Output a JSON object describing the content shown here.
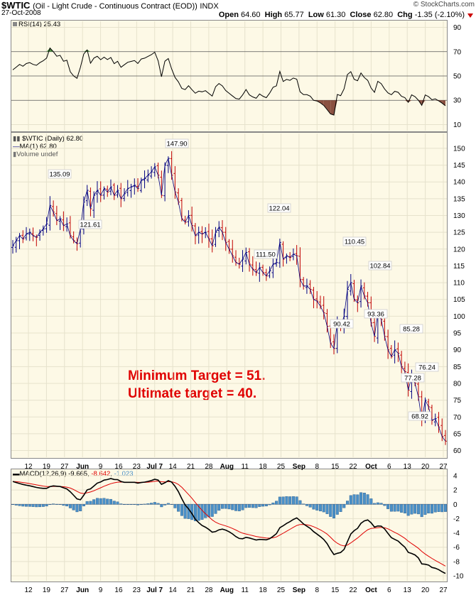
{
  "header": {
    "symbol": "$WTIC",
    "description": "(Oil - Light Crude - Continuous Contract (EOD))",
    "exchange": "INDX",
    "date": "27-Oct-2008",
    "quote": {
      "open_label": "Open",
      "open": "64.60",
      "high_label": "High",
      "high": "65.77",
      "low_label": "Low",
      "low": "61.30",
      "close_label": "Close",
      "close": "62.80",
      "chg_label": "Chg",
      "chg": "-1.35 (-2.10%)"
    },
    "credit": "© StockCharts.com"
  },
  "rsi_panel": {
    "label": "RSI(14) 25.43",
    "ticks": [
      "90",
      "70",
      "50",
      "30",
      "10"
    ]
  },
  "price_panel": {
    "legend_main": "$WTIC (Daily) 62.80",
    "legend_ma": "MA(1) 62.80",
    "legend_vol": "Volume undef",
    "ticks": [
      "150",
      "145",
      "140",
      "135",
      "130",
      "125",
      "120",
      "115",
      "110",
      "105",
      "100",
      "95",
      "90",
      "85",
      "80",
      "75",
      "70",
      "65",
      "60"
    ]
  },
  "macd_panel": {
    "label_main": "MACD(12,26,9)",
    "val1": "-9.665",
    "val2": "-8.642",
    "val3": "-1.023",
    "ticks": [
      "4",
      "2",
      "0",
      "-2",
      "-4",
      "-6",
      "-8",
      "-10"
    ]
  },
  "annotation": {
    "line1": "Minimum Target = 51.",
    "line2": "Ultimate target = 40."
  },
  "colors": {
    "panel_bg": "#fdf9e6",
    "up_bar": "#000080",
    "down_bar": "#c00000",
    "ma": "#000080",
    "macd": "#000000",
    "signal": "#e00000",
    "histogram": "#4a90c8",
    "rsi_overbought_fill": "#4a8a40",
    "rsi_oversold_fill": "#8a5040",
    "annotation": "#e00000"
  },
  "chart_data": {
    "type": "line",
    "x_axis_labels": [
      "12",
      "19",
      "27",
      "Jun",
      "9",
      "16",
      "23",
      "Jul 7",
      "14",
      "21",
      "28",
      "Aug",
      "11",
      "18",
      "25",
      "Sep",
      "8",
      "15",
      "22",
      "Oct",
      "6",
      "13",
      "20",
      "27"
    ],
    "price": {
      "ylim": [
        58,
        154
      ],
      "labeled_points": [
        {
          "label": "135.09",
          "value": 135.09
        },
        {
          "label": "121.61",
          "value": 121.61
        },
        {
          "label": "147.90",
          "value": 147.9
        },
        {
          "label": "122.04",
          "value": 122.04
        },
        {
          "label": "111.50",
          "value": 111.5
        },
        {
          "label": "110.45",
          "value": 110.45
        },
        {
          "label": "90.42",
          "value": 90.42
        },
        {
          "label": "102.84",
          "value": 102.84
        },
        {
          "label": "93.36",
          "value": 93.36
        },
        {
          "label": "85.28",
          "value": 85.28
        },
        {
          "label": "77.28",
          "value": 77.28
        },
        {
          "label": "76.24",
          "value": 76.24
        },
        {
          "label": "68.92",
          "value": 68.92
        }
      ],
      "close": [
        121,
        122.5,
        124,
        123,
        124.5,
        125,
        124,
        123.5,
        125,
        126,
        127.5,
        133,
        131,
        128.5,
        129,
        127,
        127.5,
        124,
        122.5,
        121.6,
        126,
        134,
        137.5,
        132,
        136,
        137.5,
        136,
        138,
        137,
        138.5,
        136,
        137.5,
        135,
        136.5,
        138,
        138.5,
        139,
        138,
        140.5,
        141,
        142,
        143,
        144.5,
        142,
        136,
        145,
        147,
        142,
        137,
        134,
        129,
        128,
        130,
        127,
        124,
        125,
        124.5,
        125,
        123,
        121,
        125,
        126.5,
        125,
        122,
        120,
        118,
        116,
        115.5,
        117,
        119,
        115.5,
        114,
        113,
        114.5,
        113,
        112,
        113.5,
        115.5,
        116,
        122,
        117,
        118,
        117.5,
        118.5,
        118,
        111,
        109,
        109,
        108,
        105,
        104.5,
        103,
        101,
        97,
        92,
        90.4,
        98,
        97,
        100,
        108,
        110,
        105,
        104,
        109,
        106,
        104,
        98,
        94,
        101,
        99,
        94,
        90,
        88,
        90,
        89,
        85,
        83.5,
        78,
        82,
        80,
        76,
        69,
        75,
        73,
        69,
        69.5,
        67,
        64.2,
        62.8
      ]
    },
    "rsi": {
      "ylim": [
        5,
        95
      ],
      "overbought": 70,
      "oversold": 30,
      "last": 25.43
    },
    "macd": {
      "ylim": [
        -10.5,
        4.6
      ],
      "last_macd": -9.665,
      "last_signal": -8.642,
      "last_hist": -1.023
    }
  }
}
